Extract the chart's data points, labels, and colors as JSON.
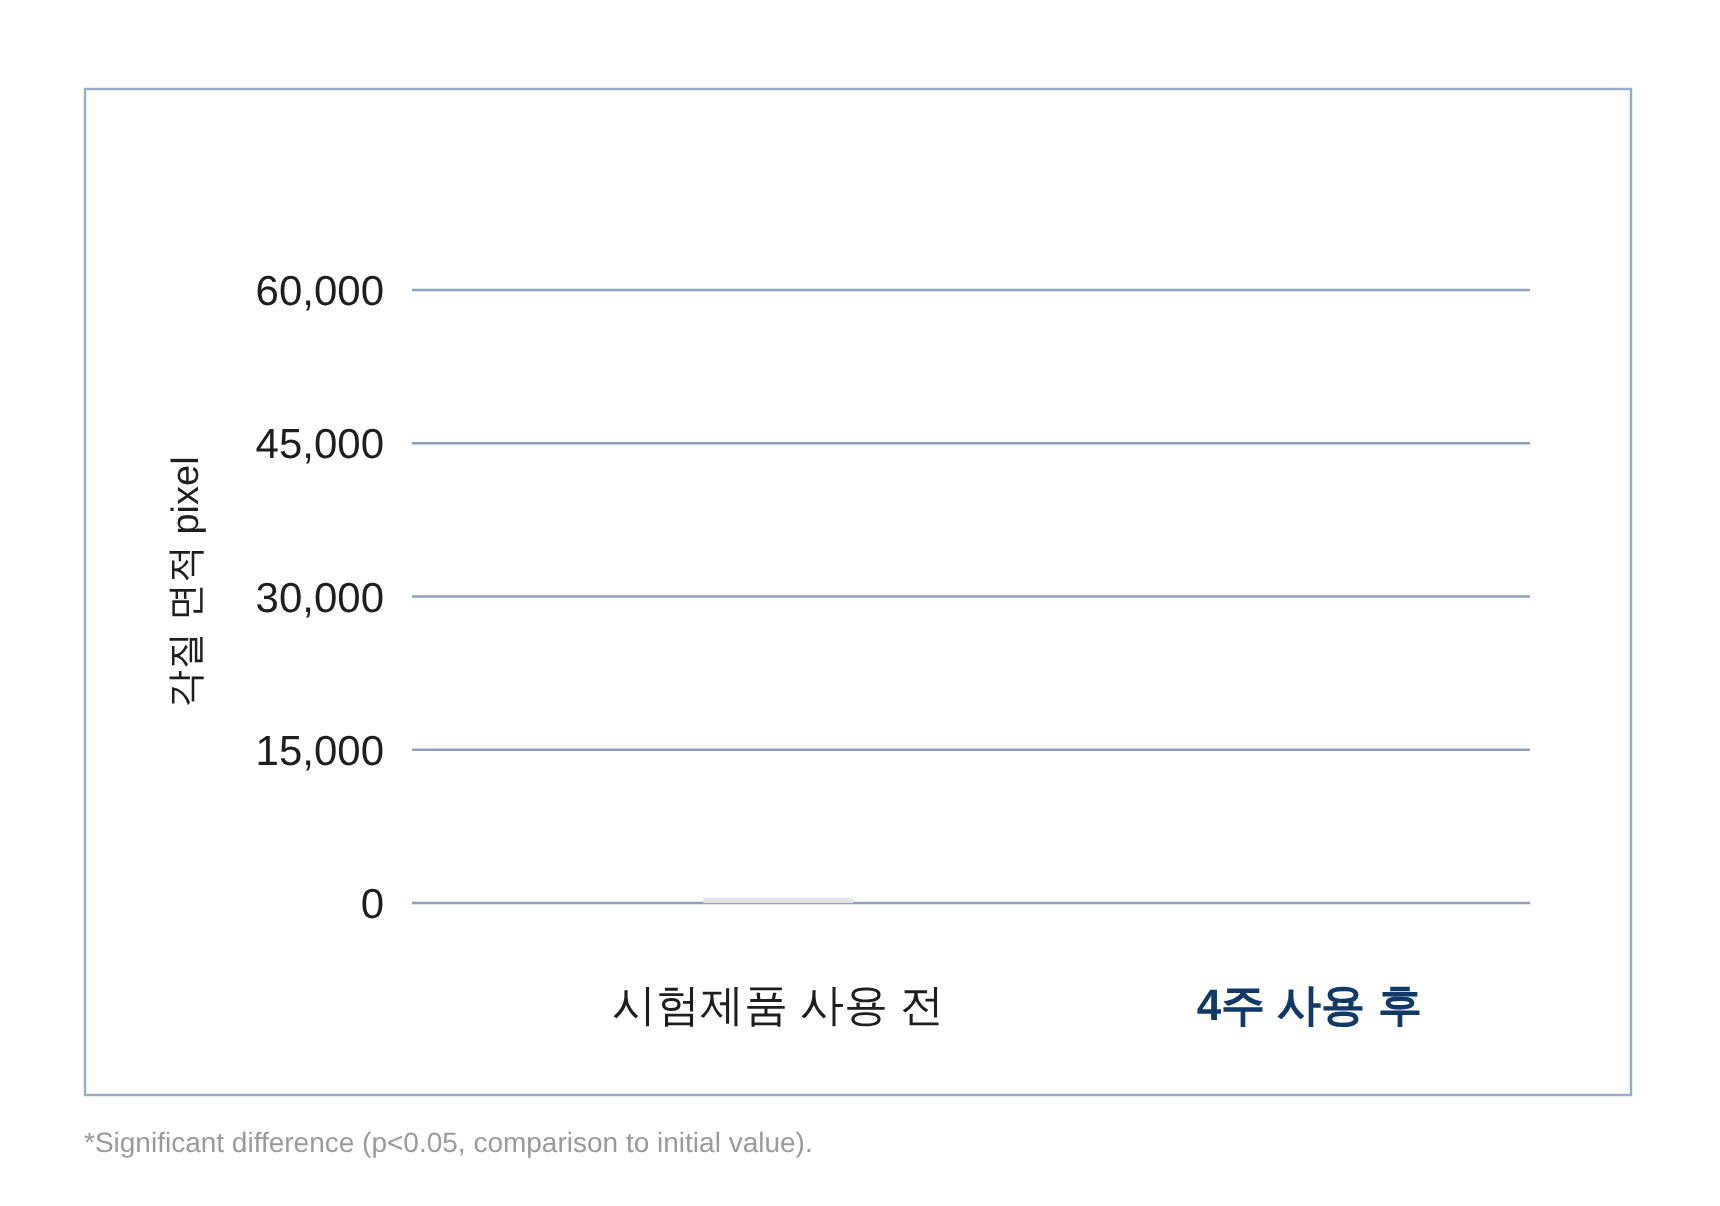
{
  "chart_data": {
    "type": "bar",
    "categories": [
      "시험제품 사용 전",
      "4주 사용 후"
    ],
    "values": [
      500,
      null
    ],
    "color": "#e2e2e2",
    "ylabel": "각질 면적 pixel",
    "ylim": [
      0,
      60000
    ],
    "yticks": [
      0,
      {
        "value": 15000,
        "label": "15,000"
      },
      {
        "value": 30000,
        "label": "30,000"
      },
      {
        "value": 45000,
        "label": "45,000"
      },
      {
        "value": 60000,
        "label": "60,000"
      }
    ],
    "grid": "y",
    "annotations": [
      "*Significant difference (p<0.05, comparison to initial value)."
    ]
  }
}
